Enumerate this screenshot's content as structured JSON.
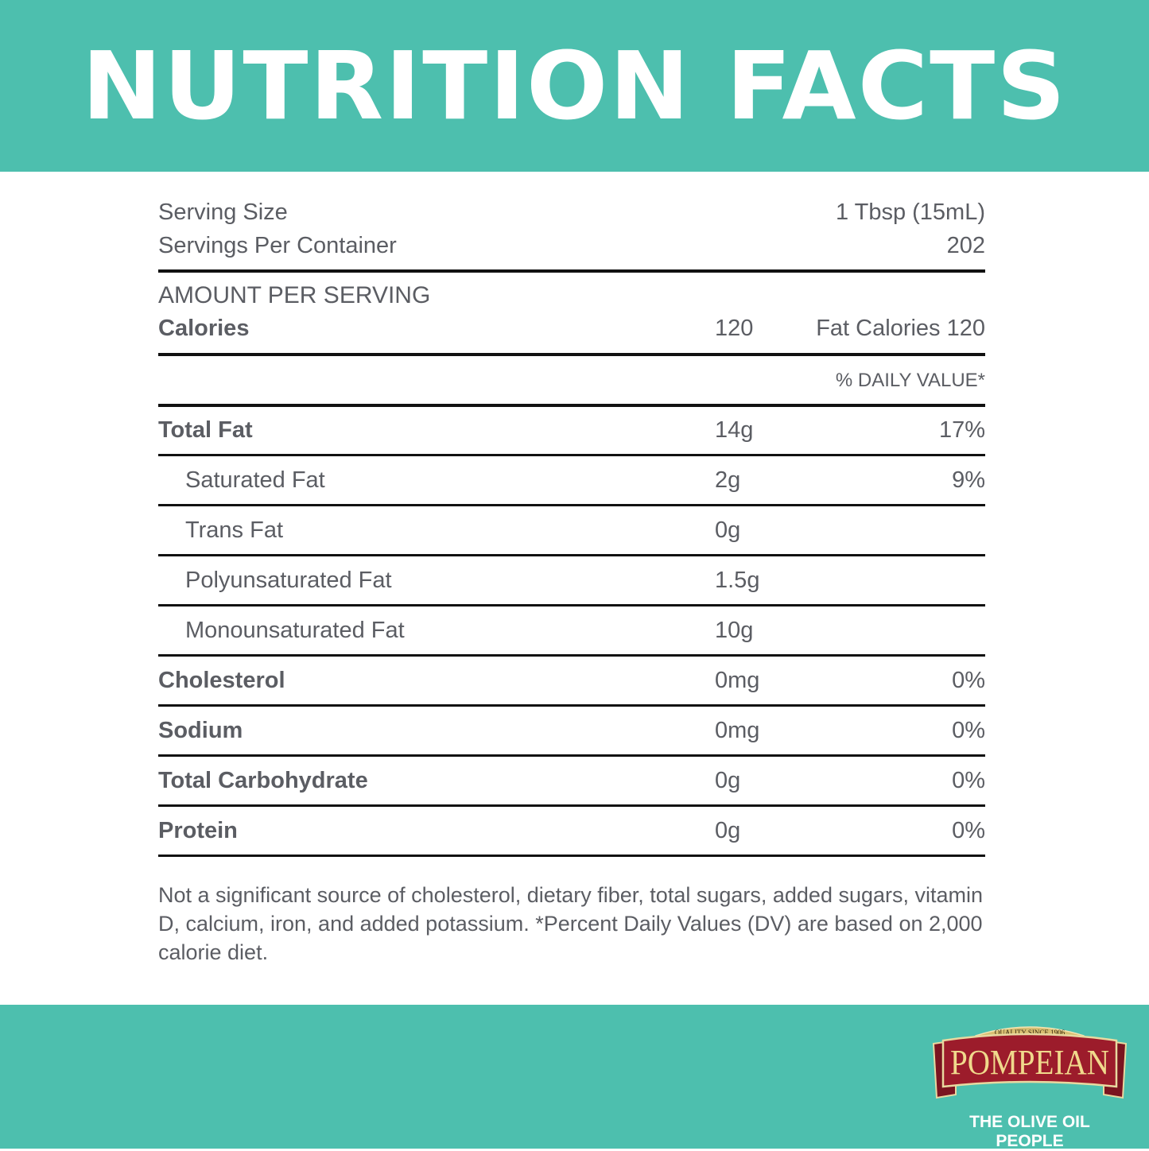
{
  "title": "NUTRITION FACTS",
  "serving": {
    "size_label": "Serving Size",
    "size_value": "1 Tbsp (15mL)",
    "per_container_label": "Servings Per Container",
    "per_container_value": "202"
  },
  "amount_per_serving_label": "AMOUNT PER SERVING",
  "calories": {
    "label": "Calories",
    "value": "120",
    "fat_calories": "Fat Calories 120"
  },
  "daily_value_header": "% DAILY VALUE*",
  "nutrients": [
    {
      "name": "Total Fat",
      "amount": "14g",
      "dv": "17%",
      "bold": true
    },
    {
      "name": "Saturated Fat",
      "amount": "2g",
      "dv": "9%",
      "bold": false
    },
    {
      "name": "Trans Fat",
      "amount": "0g",
      "dv": "",
      "bold": false
    },
    {
      "name": "Polyunsaturated Fat",
      "amount": "1.5g",
      "dv": "",
      "bold": false
    },
    {
      "name": "Monounsaturated Fat",
      "amount": "10g",
      "dv": "",
      "bold": false
    },
    {
      "name": "Cholesterol",
      "amount": "0mg",
      "dv": "0%",
      "bold": true
    },
    {
      "name": "Sodium",
      "amount": "0mg",
      "dv": "0%",
      "bold": true
    },
    {
      "name": "Total Carbohydrate",
      "amount": "0g",
      "dv": "0%",
      "bold": true
    },
    {
      "name": "Protein",
      "amount": "0g",
      "dv": "0%",
      "bold": true
    }
  ],
  "footnote": "Not a significant source of cholesterol, dietary fiber, total sugars, added sugars, vitamin D, calcium, iron, and added potassium. *Percent Daily Values (DV) are based on 2,000 calorie diet.",
  "brand": {
    "logo_text": "POMPEIAN",
    "logo_banner": "QUALITY SINCE 1906",
    "tagline": "THE OLIVE OIL PEOPLE"
  },
  "colors": {
    "accent": "#4dbfae",
    "text": "#5b5d63",
    "logo_red": "#9c1c2b",
    "logo_gold": "#e8cf86"
  }
}
